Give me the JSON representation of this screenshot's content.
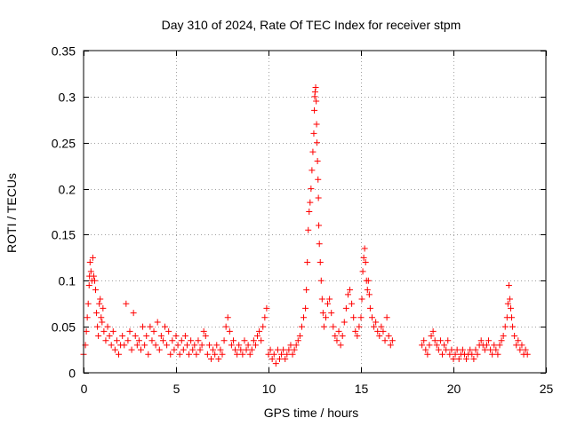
{
  "chart_data": {
    "type": "scatter",
    "title": "Day 310 of 2024, Rate Of TEC Index for receiver stpm",
    "xlabel": "GPS time / hours",
    "ylabel": "ROTI / TECUs",
    "xlim": [
      0,
      25
    ],
    "ylim": [
      0,
      0.35
    ],
    "grid": true,
    "marker": "plus",
    "colors": {
      "points": "#ff0000",
      "grid": "#a0a0a0",
      "frame": "#000000"
    },
    "x_ticks": [
      {
        "value": 0,
        "label": "0"
      },
      {
        "value": 5,
        "label": "5"
      },
      {
        "value": 10,
        "label": "10"
      },
      {
        "value": 15,
        "label": "15"
      },
      {
        "value": 20,
        "label": "20"
      },
      {
        "value": 25,
        "label": "25"
      }
    ],
    "y_ticks": [
      {
        "value": 0,
        "label": "0"
      },
      {
        "value": 0.05,
        "label": "0.05"
      },
      {
        "value": 0.1,
        "label": "0.1"
      },
      {
        "value": 0.15,
        "label": "0.15"
      },
      {
        "value": 0.2,
        "label": "0.2"
      },
      {
        "value": 0.25,
        "label": "0.25"
      },
      {
        "value": 0.3,
        "label": "0.3"
      },
      {
        "value": 0.35,
        "label": "0.35"
      }
    ],
    "series": [
      {
        "name": "ROTI",
        "points": [
          [
            0.0,
            0.02
          ],
          [
            0.1,
            0.03
          ],
          [
            0.15,
            0.045
          ],
          [
            0.2,
            0.06
          ],
          [
            0.25,
            0.075
          ],
          [
            0.3,
            0.095
          ],
          [
            0.32,
            0.105
          ],
          [
            0.35,
            0.12
          ],
          [
            0.4,
            0.11
          ],
          [
            0.45,
            0.1
          ],
          [
            0.5,
            0.125
          ],
          [
            0.55,
            0.105
          ],
          [
            0.6,
            0.1
          ],
          [
            0.65,
            0.09
          ],
          [
            0.7,
            0.065
          ],
          [
            0.75,
            0.05
          ],
          [
            0.8,
            0.04
          ],
          [
            0.85,
            0.075
          ],
          [
            0.9,
            0.08
          ],
          [
            0.95,
            0.06
          ],
          [
            1.0,
            0.055
          ],
          [
            1.05,
            0.07
          ],
          [
            1.1,
            0.045
          ],
          [
            1.2,
            0.035
          ],
          [
            1.3,
            0.05
          ],
          [
            1.4,
            0.04
          ],
          [
            1.5,
            0.03
          ],
          [
            1.6,
            0.045
          ],
          [
            1.7,
            0.025
          ],
          [
            1.8,
            0.035
          ],
          [
            1.9,
            0.02
          ],
          [
            2.0,
            0.03
          ],
          [
            2.1,
            0.04
          ],
          [
            2.2,
            0.03
          ],
          [
            2.3,
            0.075
          ],
          [
            2.4,
            0.035
          ],
          [
            2.5,
            0.045
          ],
          [
            2.6,
            0.025
          ],
          [
            2.7,
            0.065
          ],
          [
            2.8,
            0.04
          ],
          [
            2.9,
            0.03
          ],
          [
            3.0,
            0.035
          ],
          [
            3.1,
            0.025
          ],
          [
            3.2,
            0.05
          ],
          [
            3.3,
            0.03
          ],
          [
            3.4,
            0.04
          ],
          [
            3.5,
            0.02
          ],
          [
            3.6,
            0.05
          ],
          [
            3.7,
            0.035
          ],
          [
            3.8,
            0.045
          ],
          [
            3.9,
            0.03
          ],
          [
            4.0,
            0.055
          ],
          [
            4.1,
            0.025
          ],
          [
            4.2,
            0.04
          ],
          [
            4.3,
            0.035
          ],
          [
            4.4,
            0.05
          ],
          [
            4.5,
            0.03
          ],
          [
            4.6,
            0.045
          ],
          [
            4.7,
            0.02
          ],
          [
            4.8,
            0.035
          ],
          [
            4.9,
            0.025
          ],
          [
            5.0,
            0.04
          ],
          [
            5.1,
            0.03
          ],
          [
            5.2,
            0.02
          ],
          [
            5.3,
            0.035
          ],
          [
            5.4,
            0.025
          ],
          [
            5.5,
            0.04
          ],
          [
            5.6,
            0.03
          ],
          [
            5.7,
            0.02
          ],
          [
            5.8,
            0.035
          ],
          [
            5.9,
            0.025
          ],
          [
            6.0,
            0.03
          ],
          [
            6.1,
            0.02
          ],
          [
            6.2,
            0.035
          ],
          [
            6.3,
            0.025
          ],
          [
            6.4,
            0.03
          ],
          [
            6.5,
            0.045
          ],
          [
            6.6,
            0.04
          ],
          [
            6.7,
            0.02
          ],
          [
            6.8,
            0.03
          ],
          [
            6.9,
            0.015
          ],
          [
            7.0,
            0.025
          ],
          [
            7.1,
            0.02
          ],
          [
            7.2,
            0.03
          ],
          [
            7.3,
            0.015
          ],
          [
            7.4,
            0.025
          ],
          [
            7.5,
            0.02
          ],
          [
            7.6,
            0.035
          ],
          [
            7.7,
            0.05
          ],
          [
            7.8,
            0.06
          ],
          [
            7.9,
            0.045
          ],
          [
            8.0,
            0.03
          ],
          [
            8.1,
            0.035
          ],
          [
            8.2,
            0.025
          ],
          [
            8.3,
            0.02
          ],
          [
            8.4,
            0.03
          ],
          [
            8.5,
            0.025
          ],
          [
            8.6,
            0.02
          ],
          [
            8.7,
            0.035
          ],
          [
            8.8,
            0.025
          ],
          [
            8.9,
            0.03
          ],
          [
            9.0,
            0.02
          ],
          [
            9.1,
            0.025
          ],
          [
            9.2,
            0.035
          ],
          [
            9.3,
            0.03
          ],
          [
            9.4,
            0.04
          ],
          [
            9.5,
            0.045
          ],
          [
            9.6,
            0.035
          ],
          [
            9.7,
            0.05
          ],
          [
            9.8,
            0.06
          ],
          [
            9.9,
            0.07
          ],
          [
            10.0,
            0.02
          ],
          [
            10.1,
            0.025
          ],
          [
            10.2,
            0.015
          ],
          [
            10.3,
            0.02
          ],
          [
            10.4,
            0.01
          ],
          [
            10.5,
            0.025
          ],
          [
            10.6,
            0.015
          ],
          [
            10.7,
            0.02
          ],
          [
            10.8,
            0.025
          ],
          [
            10.9,
            0.015
          ],
          [
            11.0,
            0.02
          ],
          [
            11.1,
            0.025
          ],
          [
            11.2,
            0.03
          ],
          [
            11.3,
            0.02
          ],
          [
            11.4,
            0.025
          ],
          [
            11.5,
            0.03
          ],
          [
            11.6,
            0.035
          ],
          [
            11.7,
            0.04
          ],
          [
            11.8,
            0.05
          ],
          [
            11.9,
            0.06
          ],
          [
            12.0,
            0.07
          ],
          [
            12.05,
            0.09
          ],
          [
            12.1,
            0.12
          ],
          [
            12.15,
            0.155
          ],
          [
            12.2,
            0.175
          ],
          [
            12.25,
            0.185
          ],
          [
            12.3,
            0.2
          ],
          [
            12.35,
            0.22
          ],
          [
            12.4,
            0.24
          ],
          [
            12.45,
            0.26
          ],
          [
            12.48,
            0.285
          ],
          [
            12.5,
            0.3
          ],
          [
            12.52,
            0.305
          ],
          [
            12.55,
            0.31
          ],
          [
            12.58,
            0.295
          ],
          [
            12.6,
            0.27
          ],
          [
            12.62,
            0.25
          ],
          [
            12.65,
            0.23
          ],
          [
            12.68,
            0.21
          ],
          [
            12.7,
            0.19
          ],
          [
            12.72,
            0.16
          ],
          [
            12.75,
            0.14
          ],
          [
            12.8,
            0.12
          ],
          [
            12.85,
            0.1
          ],
          [
            12.9,
            0.08
          ],
          [
            12.95,
            0.065
          ],
          [
            13.0,
            0.05
          ],
          [
            13.1,
            0.06
          ],
          [
            13.2,
            0.075
          ],
          [
            13.3,
            0.08
          ],
          [
            13.4,
            0.065
          ],
          [
            13.5,
            0.05
          ],
          [
            13.6,
            0.04
          ],
          [
            13.7,
            0.035
          ],
          [
            13.8,
            0.045
          ],
          [
            13.9,
            0.03
          ],
          [
            14.0,
            0.04
          ],
          [
            14.1,
            0.055
          ],
          [
            14.2,
            0.07
          ],
          [
            14.3,
            0.085
          ],
          [
            14.4,
            0.09
          ],
          [
            14.5,
            0.075
          ],
          [
            14.6,
            0.06
          ],
          [
            14.7,
            0.045
          ],
          [
            14.8,
            0.04
          ],
          [
            14.9,
            0.05
          ],
          [
            15.0,
            0.06
          ],
          [
            15.05,
            0.08
          ],
          [
            15.1,
            0.11
          ],
          [
            15.15,
            0.125
          ],
          [
            15.2,
            0.135
          ],
          [
            15.25,
            0.12
          ],
          [
            15.3,
            0.1
          ],
          [
            15.35,
            0.09
          ],
          [
            15.4,
            0.1
          ],
          [
            15.45,
            0.085
          ],
          [
            15.5,
            0.07
          ],
          [
            15.6,
            0.06
          ],
          [
            15.7,
            0.05
          ],
          [
            15.8,
            0.055
          ],
          [
            15.9,
            0.045
          ],
          [
            16.0,
            0.04
          ],
          [
            16.1,
            0.05
          ],
          [
            16.2,
            0.045
          ],
          [
            16.3,
            0.035
          ],
          [
            16.4,
            0.06
          ],
          [
            16.5,
            0.04
          ],
          [
            16.6,
            0.03
          ],
          [
            16.7,
            0.035
          ],
          [
            18.3,
            0.03
          ],
          [
            18.4,
            0.035
          ],
          [
            18.5,
            0.025
          ],
          [
            18.6,
            0.02
          ],
          [
            18.7,
            0.03
          ],
          [
            18.8,
            0.04
          ],
          [
            18.9,
            0.045
          ],
          [
            19.0,
            0.035
          ],
          [
            19.1,
            0.03
          ],
          [
            19.2,
            0.025
          ],
          [
            19.3,
            0.035
          ],
          [
            19.4,
            0.02
          ],
          [
            19.5,
            0.03
          ],
          [
            19.6,
            0.025
          ],
          [
            19.7,
            0.035
          ],
          [
            19.8,
            0.02
          ],
          [
            19.9,
            0.025
          ],
          [
            20.0,
            0.015
          ],
          [
            20.1,
            0.02
          ],
          [
            20.2,
            0.025
          ],
          [
            20.3,
            0.015
          ],
          [
            20.4,
            0.02
          ],
          [
            20.5,
            0.025
          ],
          [
            20.6,
            0.02
          ],
          [
            20.7,
            0.015
          ],
          [
            20.8,
            0.02
          ],
          [
            20.9,
            0.025
          ],
          [
            21.0,
            0.02
          ],
          [
            21.1,
            0.015
          ],
          [
            21.2,
            0.025
          ],
          [
            21.3,
            0.02
          ],
          [
            21.4,
            0.03
          ],
          [
            21.5,
            0.035
          ],
          [
            21.6,
            0.03
          ],
          [
            21.7,
            0.025
          ],
          [
            21.8,
            0.03
          ],
          [
            21.9,
            0.035
          ],
          [
            22.0,
            0.025
          ],
          [
            22.1,
            0.02
          ],
          [
            22.2,
            0.03
          ],
          [
            22.3,
            0.025
          ],
          [
            22.4,
            0.02
          ],
          [
            22.5,
            0.03
          ],
          [
            22.6,
            0.035
          ],
          [
            22.7,
            0.04
          ],
          [
            22.8,
            0.05
          ],
          [
            22.9,
            0.06
          ],
          [
            22.95,
            0.075
          ],
          [
            23.0,
            0.095
          ],
          [
            23.05,
            0.08
          ],
          [
            23.1,
            0.07
          ],
          [
            23.15,
            0.06
          ],
          [
            23.2,
            0.05
          ],
          [
            23.3,
            0.04
          ],
          [
            23.4,
            0.03
          ],
          [
            23.5,
            0.035
          ],
          [
            23.6,
            0.025
          ],
          [
            23.7,
            0.03
          ],
          [
            23.8,
            0.02
          ],
          [
            23.9,
            0.025
          ],
          [
            24.0,
            0.02
          ]
        ]
      }
    ]
  }
}
